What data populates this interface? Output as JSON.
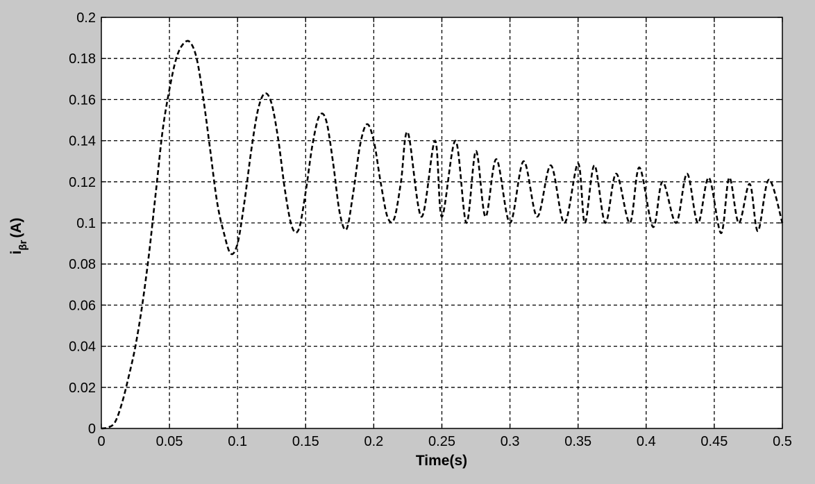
{
  "chart_data": {
    "type": "line",
    "title": "",
    "xlabel": "Time(s)",
    "ylabel": {
      "main": "i",
      "subscript": "βr",
      "unit": "(A)"
    },
    "xlim": [
      0,
      0.5
    ],
    "ylim": [
      0,
      0.2
    ],
    "grid": true,
    "line_style": "dashed",
    "colors": {
      "figure_background": "#c8c8c8",
      "axes_background": "#ffffff",
      "line": "#000000",
      "grid": "#000000"
    },
    "x_ticks": [
      "0",
      "0.05",
      "0.1",
      "0.15",
      "0.2",
      "0.25",
      "0.3",
      "0.35",
      "0.4",
      "0.45",
      "0.5"
    ],
    "y_ticks": [
      "0",
      "0.02",
      "0.04",
      "0.06",
      "0.08",
      "0.1",
      "0.12",
      "0.14",
      "0.16",
      "0.18",
      "0.2"
    ],
    "series": [
      {
        "x": [
          0,
          0.005,
          0.01,
          0.015,
          0.02,
          0.025,
          0.03,
          0.035,
          0.04,
          0.045,
          0.05,
          0.055,
          0.06,
          0.065,
          0.07,
          0.075,
          0.08,
          0.085,
          0.09,
          0.095,
          0.1,
          0.105,
          0.11,
          0.115,
          0.12,
          0.125,
          0.13,
          0.135,
          0.14,
          0.145,
          0.15,
          0.155,
          0.16,
          0.165,
          0.17,
          0.175,
          0.18,
          0.185,
          0.19,
          0.195,
          0.2,
          0.205,
          0.21,
          0.215,
          0.22,
          0.225,
          0.235,
          0.245,
          0.25,
          0.26,
          0.268,
          0.275,
          0.282,
          0.29,
          0.3,
          0.31,
          0.32,
          0.33,
          0.34,
          0.35,
          0.355,
          0.362,
          0.37,
          0.378,
          0.388,
          0.395,
          0.405,
          0.412,
          0.422,
          0.43,
          0.438,
          0.446,
          0.455,
          0.461,
          0.468,
          0.476,
          0.482,
          0.49,
          0.5
        ],
        "y": [
          0,
          0.0005,
          0.003,
          0.012,
          0.025,
          0.04,
          0.06,
          0.085,
          0.115,
          0.145,
          0.165,
          0.18,
          0.187,
          0.188,
          0.18,
          0.16,
          0.135,
          0.11,
          0.095,
          0.085,
          0.09,
          0.11,
          0.135,
          0.155,
          0.163,
          0.158,
          0.14,
          0.115,
          0.098,
          0.097,
          0.115,
          0.138,
          0.152,
          0.15,
          0.13,
          0.105,
          0.097,
          0.115,
          0.138,
          0.148,
          0.14,
          0.12,
          0.103,
          0.102,
          0.12,
          0.144,
          0.103,
          0.14,
          0.103,
          0.14,
          0.1,
          0.135,
          0.103,
          0.131,
          0.1,
          0.13,
          0.103,
          0.128,
          0.1,
          0.129,
          0.1,
          0.128,
          0.1,
          0.124,
          0.1,
          0.127,
          0.098,
          0.12,
          0.1,
          0.124,
          0.1,
          0.122,
          0.095,
          0.122,
          0.1,
          0.119,
          0.096,
          0.121,
          0.1
        ]
      }
    ]
  }
}
